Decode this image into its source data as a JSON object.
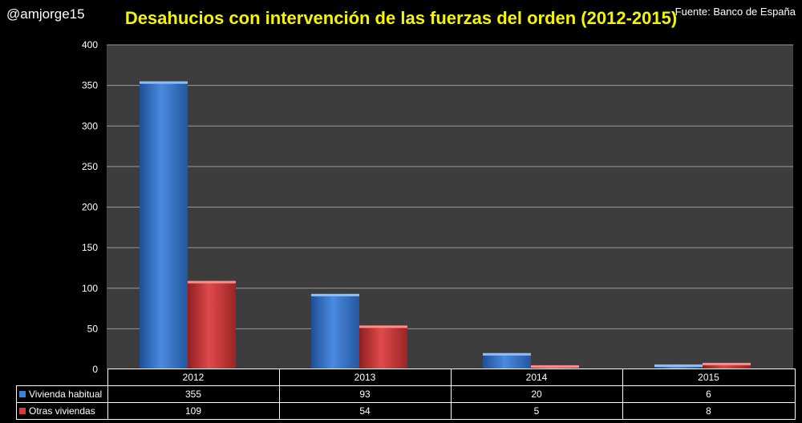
{
  "header": {
    "handle": "@amjorge15",
    "title": "Desahucios con intervención de las fuerzas del orden (2012-2015)",
    "source": "Fuente: Banco de España"
  },
  "chart_data": {
    "type": "bar",
    "categories": [
      "2012",
      "2013",
      "2014",
      "2015"
    ],
    "series": [
      {
        "name": "Vivienda habitual",
        "values": [
          355,
          93,
          20,
          6
        ],
        "color": "#3f7fd6"
      },
      {
        "name": "Otras viviendas",
        "values": [
          109,
          54,
          5,
          8
        ],
        "color": "#d63a3a"
      }
    ],
    "ylim": [
      0,
      400
    ],
    "yticks": [
      0,
      50,
      100,
      150,
      200,
      250,
      300,
      350,
      400
    ],
    "grid": true,
    "legend": "data-table",
    "data_table": {
      "rows": [
        {
          "label": "Vivienda habitual",
          "values": [
            "355",
            "93",
            "20",
            "6"
          ]
        },
        {
          "label": "Otras viviendas",
          "values": [
            "109",
            "54",
            "5",
            "8"
          ]
        }
      ]
    }
  }
}
